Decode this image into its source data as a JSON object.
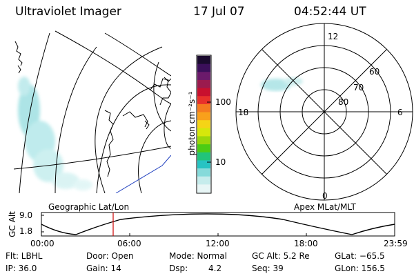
{
  "header": {
    "instrument": "Ultraviolet Imager",
    "date": "17 Jul 07",
    "time": "04:52:44 UT"
  },
  "colorbar": {
    "unit_label": "photon cm⁻²s⁻¹",
    "ticks": [
      "100",
      "10"
    ],
    "colors": [
      "#1a0a2e",
      "#3b0f5a",
      "#6b1a6b",
      "#9b1b4e",
      "#c8102e",
      "#e8312b",
      "#f57b20",
      "#f9a01b",
      "#f5d416",
      "#d6e70b",
      "#9bd70a",
      "#4ccc14",
      "#22c47a",
      "#27c3c3",
      "#86dada",
      "#c6ecec",
      "#e8f6f6"
    ]
  },
  "geo_map": {
    "label": "Geographic Lat/Lon"
  },
  "polar_plot": {
    "label": "Apex MLat/MLT",
    "mlt_labels": {
      "top": "12",
      "bottom": "0",
      "left": "18",
      "right": "6"
    },
    "lat_labels": [
      "60",
      "70",
      "80"
    ]
  },
  "altitude_strip": {
    "axis_label": "GC Alt",
    "y_ticks": [
      "9.0",
      "1.8"
    ],
    "x_ticks": [
      "00:00",
      "06:00",
      "12:00",
      "18:00",
      "23:59"
    ],
    "marker_color": "#cc0000"
  },
  "status": {
    "filter": "Flt: LBHL",
    "door": "Door: Open",
    "mode": "Mode: Normal",
    "gc_alt": "GC Alt: 5.2 Re",
    "glat": "GLat: −65.5",
    "ip": "IP: 36.0",
    "gain": "Gain: 14",
    "dsp_label": "Dsp:",
    "dsp_value": "4.2",
    "seq": "Seq: 39",
    "glon": "GLon: 156.5"
  }
}
